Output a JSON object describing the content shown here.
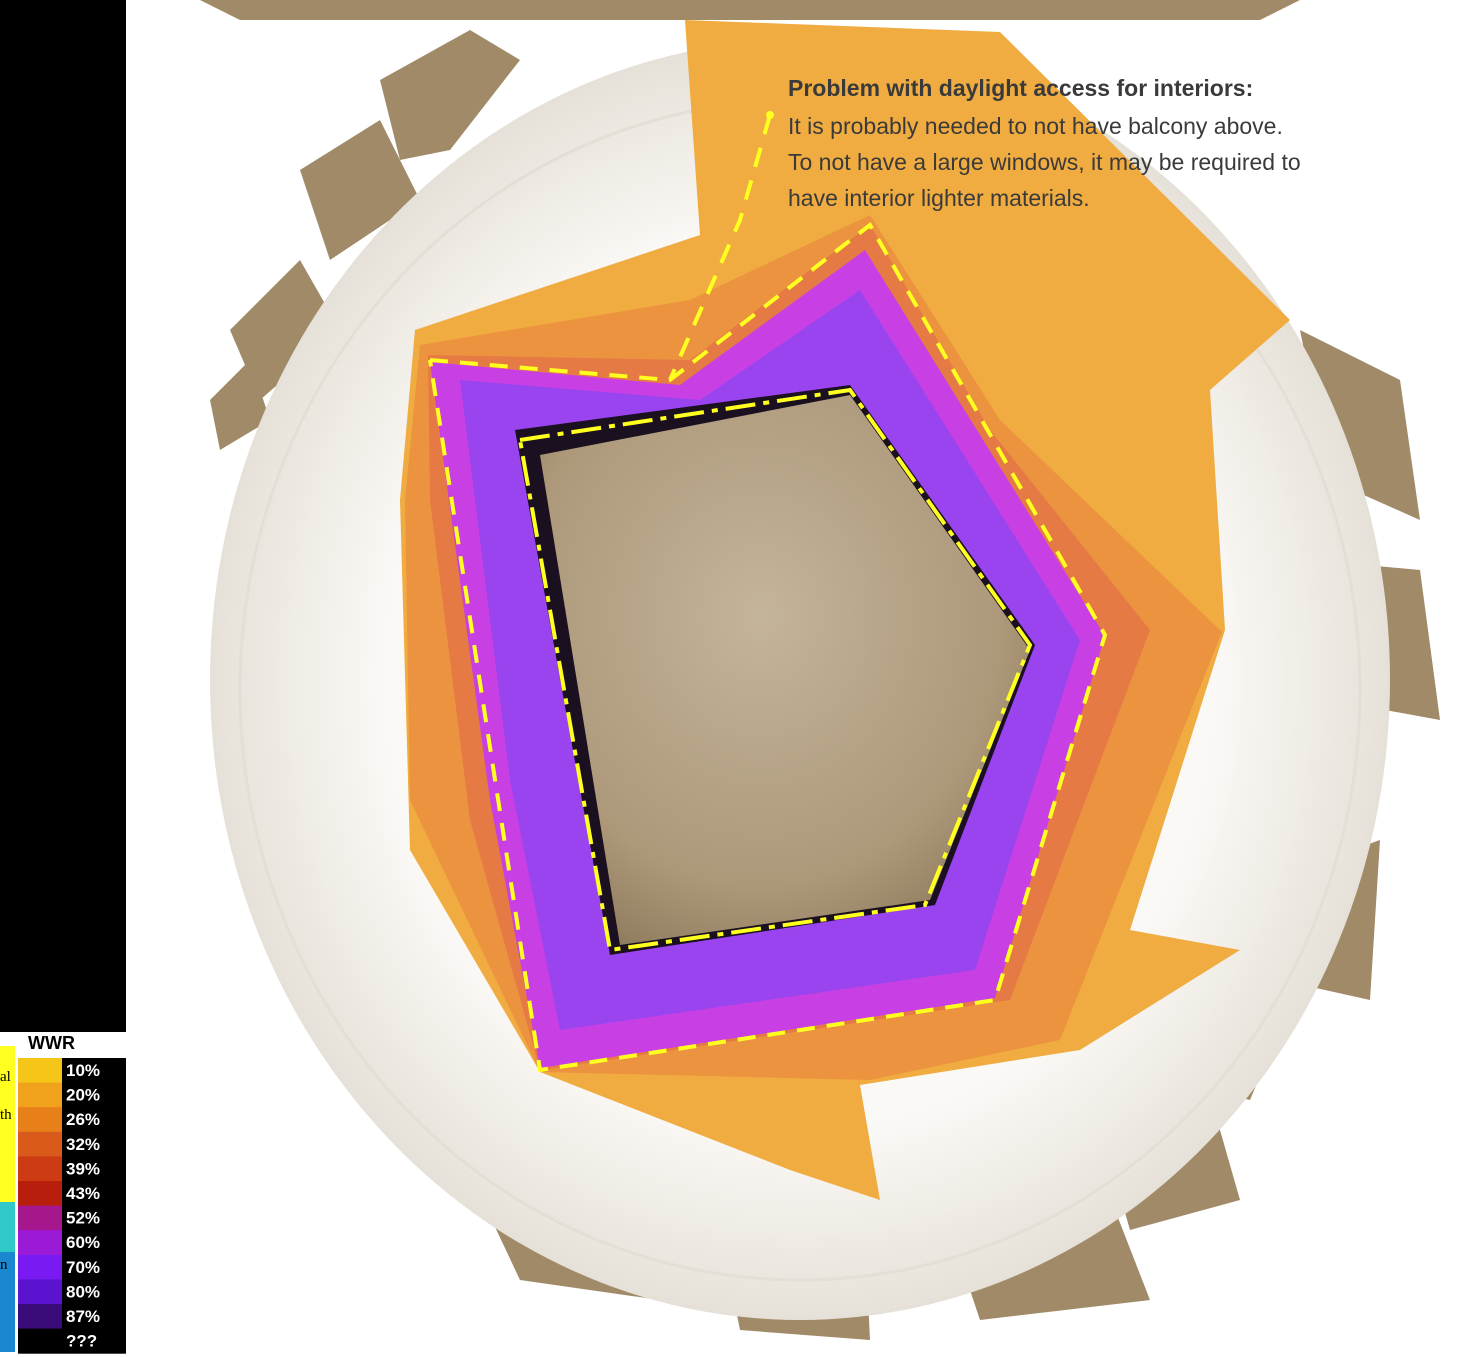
{
  "annotation": {
    "title": "Problem with daylight access for interiors:",
    "lines": [
      "It is probably needed to not have balcony above.",
      "To not have a large windows, it may be required to",
      "have interior lighter materials."
    ]
  },
  "legend": {
    "title": "WWR",
    "items": [
      {
        "label": "10%",
        "color": "#f5c518"
      },
      {
        "label": "20%",
        "color": "#f0a21c"
      },
      {
        "label": "26%",
        "color": "#e8801a"
      },
      {
        "label": "32%",
        "color": "#d95a1a"
      },
      {
        "label": "39%",
        "color": "#cc3b14"
      },
      {
        "label": "43%",
        "color": "#b81e0c"
      },
      {
        "label": "52%",
        "color": "#a6168c"
      },
      {
        "label": "60%",
        "color": "#9a1ad8"
      },
      {
        "label": "70%",
        "color": "#7a1af2"
      },
      {
        "label": "80%",
        "color": "#5a14d0"
      },
      {
        "label": "87%",
        "color": "#3a0c7a"
      },
      {
        "label": "???",
        "color": "#000000"
      }
    ]
  },
  "edge_fragments": [
    "al",
    "th",
    "n"
  ]
}
